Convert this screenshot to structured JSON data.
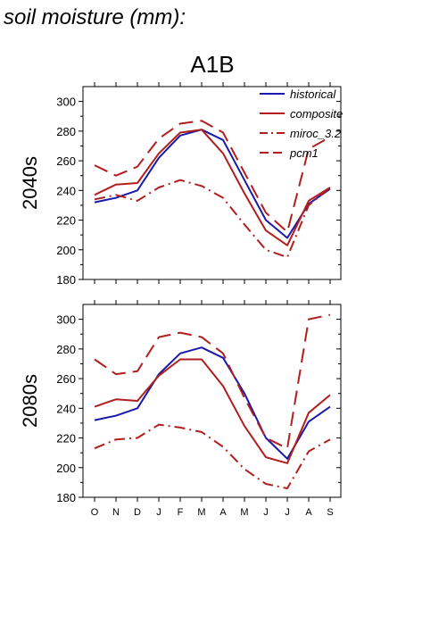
{
  "heading": "soil moisture (mm):",
  "scenario": "A1B",
  "colors": {
    "historical": "#1a1aaa",
    "model": "#b21e1e"
  },
  "chart_data": {
    "type": "line",
    "x": [
      "O",
      "N",
      "D",
      "J",
      "F",
      "M",
      "A",
      "M",
      "J",
      "J",
      "A",
      "S"
    ],
    "ylim": [
      180,
      310
    ],
    "yticks": [
      180,
      200,
      220,
      240,
      260,
      280,
      300
    ],
    "legend_position": "top-right",
    "legend": [
      {
        "key": "historical",
        "label": "historical",
        "dash": "solid",
        "color": "historical"
      },
      {
        "key": "composite",
        "label": "composite",
        "dash": "solid",
        "color": "model"
      },
      {
        "key": "miroc",
        "label": "miroc_3.2",
        "dash": "dashdot",
        "color": "model"
      },
      {
        "key": "pcm1",
        "label": "pcm1",
        "dash": "longdash",
        "color": "model"
      }
    ],
    "panels": [
      {
        "label": "2040s",
        "series": [
          {
            "key": "historical",
            "values": [
              232,
              235,
              240,
              262,
              277,
              281,
              274,
              247,
              220,
              208,
              231,
              241
            ]
          },
          {
            "key": "composite",
            "values": [
              237,
              244,
              245,
              265,
              279,
              281,
              265,
              238,
              213,
              203,
              233,
              242
            ]
          },
          {
            "key": "miroc",
            "values": [
              234,
              237,
              233,
              242,
              247,
              243,
              235,
              217,
              200,
              195,
              230,
              242
            ]
          },
          {
            "key": "pcm1",
            "values": [
              257,
              250,
              256,
              275,
              285,
              287,
              279,
              252,
              225,
              212,
              268,
              276
            ]
          }
        ]
      },
      {
        "label": "2080s",
        "series": [
          {
            "key": "historical",
            "values": [
              232,
              235,
              240,
              263,
              277,
              281,
              274,
              250,
              220,
              206,
              231,
              241
            ]
          },
          {
            "key": "composite",
            "values": [
              241,
              246,
              245,
              262,
              273,
              273,
              255,
              228,
              207,
              203,
              237,
              249
            ]
          },
          {
            "key": "miroc",
            "values": [
              213,
              219,
              220,
              229,
              227,
              224,
              214,
              199,
              189,
              186,
              211,
              219
            ]
          },
          {
            "key": "pcm1",
            "values": [
              273,
              263,
              265,
              288,
              291,
              288,
              277,
              247,
              220,
              213,
              300,
              303
            ]
          }
        ]
      }
    ]
  }
}
